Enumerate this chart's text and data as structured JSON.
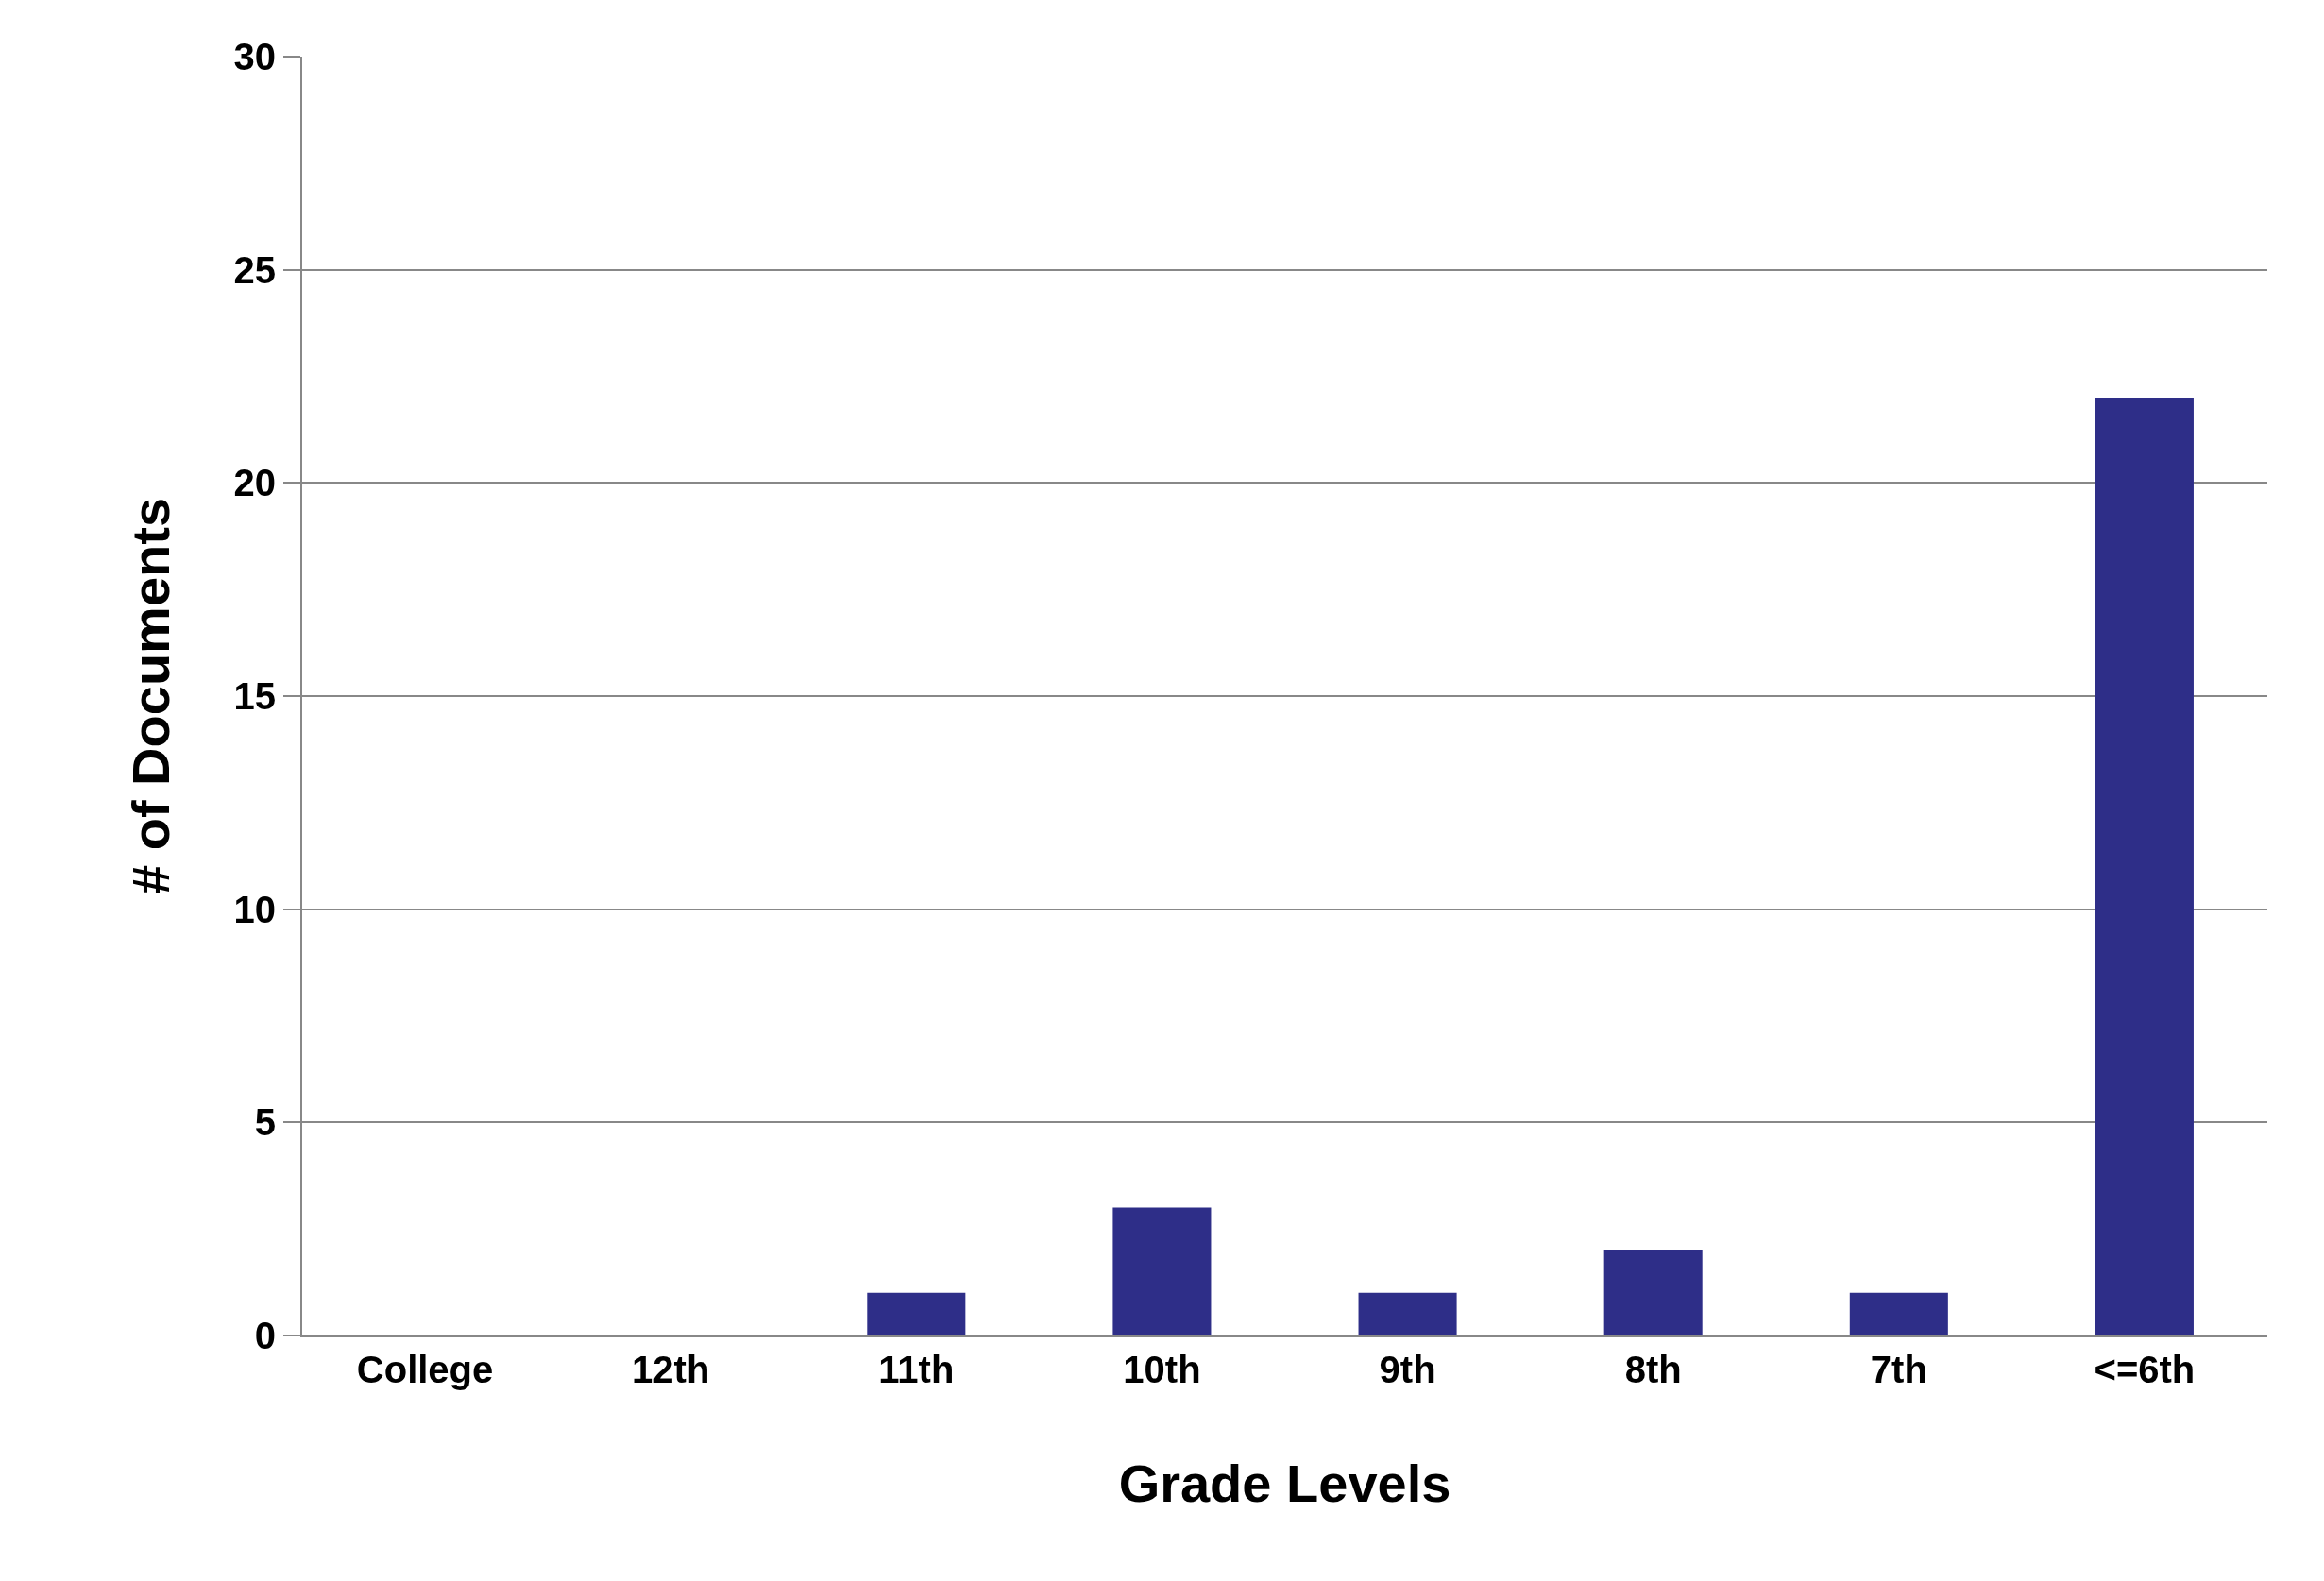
{
  "chart_data": {
    "type": "bar",
    "xlabel": "Grade Levels",
    "ylabel": "# of Documents",
    "categories": [
      "College",
      "12th",
      "11th",
      "10th",
      "9th",
      "8th",
      "7th",
      "<=6th"
    ],
    "values": [
      0,
      0,
      1,
      3,
      1,
      2,
      1,
      22
    ],
    "color": "#2e2e88",
    "ylim": [
      0,
      30
    ],
    "yticks": [
      0,
      5,
      10,
      15,
      20,
      25,
      30
    ],
    "grid": "y",
    "legend": false
  }
}
